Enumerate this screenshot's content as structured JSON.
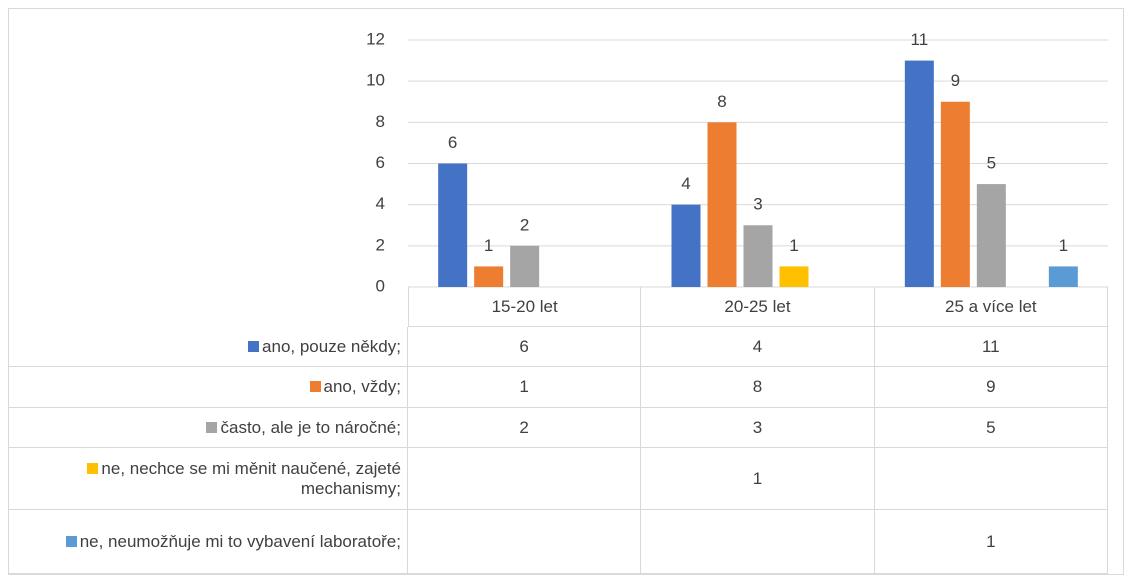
{
  "chart_data": {
    "type": "bar",
    "categories": [
      "15-20 let",
      "20-25 let",
      "25 a více let"
    ],
    "series": [
      {
        "name": "ano, pouze někdy;",
        "color": "#4472c4",
        "values": [
          6,
          4,
          11
        ]
      },
      {
        "name": "ano, vždy;",
        "color": "#ed7d31",
        "values": [
          1,
          8,
          9
        ]
      },
      {
        "name": "často, ale je to náročné;",
        "color": "#a5a5a5",
        "values": [
          2,
          3,
          5
        ]
      },
      {
        "name": "ne, nechce se mi měnit naučené, zajeté mechanismy;",
        "color": "#ffc000",
        "values": [
          null,
          1,
          null
        ]
      },
      {
        "name": "ne, neumožňuje mi to vybavení laboratoře;",
        "color": "#5b9bd5",
        "values": [
          null,
          null,
          1
        ]
      }
    ],
    "ylim": [
      0,
      12
    ],
    "yticks": [
      0,
      2,
      4,
      6,
      8,
      10,
      12
    ],
    "grid": true,
    "data_table": true
  }
}
